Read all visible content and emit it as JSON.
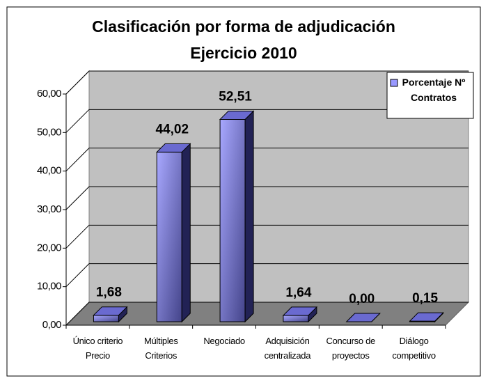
{
  "chart_data": {
    "type": "bar3d",
    "title": "Clasificación por forma de adjudicación",
    "subtitle": "Ejercicio 2010",
    "categories": [
      "Único criterio Precio",
      "Múltiples Criterios",
      "Negociado",
      "Adquisición centralizada",
      "Concurso de proyectos",
      "Diálogo competitivo"
    ],
    "series": [
      {
        "name": "Porcentaje Nº Contratos",
        "color": "#9999ff",
        "values": [
          1.68,
          44.02,
          52.51,
          1.64,
          0.0,
          0.15
        ],
        "value_labels": [
          "1,68",
          "44,02",
          "52,51",
          "1,64",
          "0,00",
          "0,15"
        ]
      }
    ],
    "ylim": [
      0,
      60
    ],
    "yticks": [
      {
        "value": 0,
        "label": "0,00"
      },
      {
        "value": 10,
        "label": "10,00"
      },
      {
        "value": 20,
        "label": "20,00"
      },
      {
        "value": 30,
        "label": "30,00"
      },
      {
        "value": 40,
        "label": "40,00"
      },
      {
        "value": 50,
        "label": "50,00"
      },
      {
        "value": 60,
        "label": "60,00"
      }
    ],
    "grid": true,
    "legend": "top-right"
  }
}
